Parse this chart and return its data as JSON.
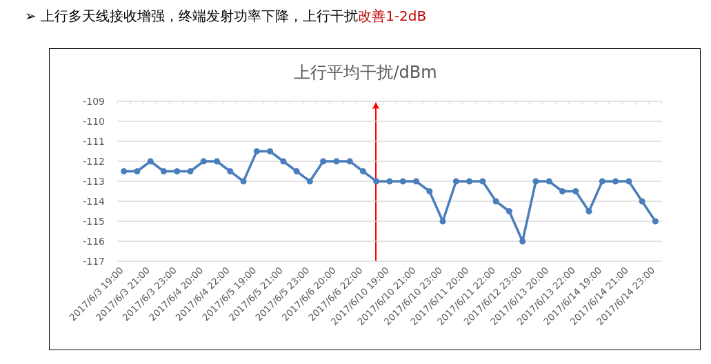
{
  "chart_data": {
    "type": "line",
    "title": "上行平均干扰/dBm",
    "annotations": [
      "➢ 上行多天线接收增强，终端发射功率下降，上行干扰",
      "改善1-2dB"
    ],
    "categories": [
      "2017/6/3 19:00",
      null,
      "2017/6/3 21:00",
      null,
      "2017/6/3 23:00",
      null,
      "2017/6/4 20:00",
      null,
      "2017/6/4 22:00",
      null,
      "2017/6/5 19:00",
      null,
      "2017/6/5 21:00",
      null,
      "2017/6/5 23:00",
      null,
      "2017/6/6 20:00",
      null,
      "2017/6/6 22:00",
      null,
      "2017/6/10 19:00",
      null,
      "2017/6/10 21:00",
      null,
      "2017/6/10 23:00",
      null,
      "2017/6/11 20:00",
      null,
      "2017/6/11 22:00",
      null,
      "2017/6/12 23:00",
      null,
      "2017/6/13 20:00",
      null,
      "2017/6/13 22:00",
      null,
      "2017/6/14 19:00",
      null,
      "2017/6/14 21:00",
      null,
      "2017/6/14 23:00"
    ],
    "series": [
      {
        "color": "#4a7ebb",
        "values": [
          -112.5,
          -112.5,
          -112,
          -112.5,
          -112.5,
          -112.5,
          -112,
          -112,
          -112.5,
          -113,
          -111.5,
          -111.5,
          -112,
          -112.5,
          -113,
          -112,
          -112,
          -112,
          -112.5,
          -113,
          -113,
          -113,
          -113,
          -113.5,
          -115,
          -113,
          -113,
          -113,
          -114,
          -114.5,
          -116,
          -113,
          -113,
          -113.5,
          -113.5,
          -114.5,
          -113,
          -113,
          -113,
          -114,
          -115
        ]
      }
    ],
    "ylim": [
      -117,
      -109
    ],
    "yticks": [
      -117,
      -116,
      -115,
      -114,
      -113,
      -112,
      -111,
      -110,
      -109
    ],
    "grid": "y",
    "marker": "circle"
  }
}
